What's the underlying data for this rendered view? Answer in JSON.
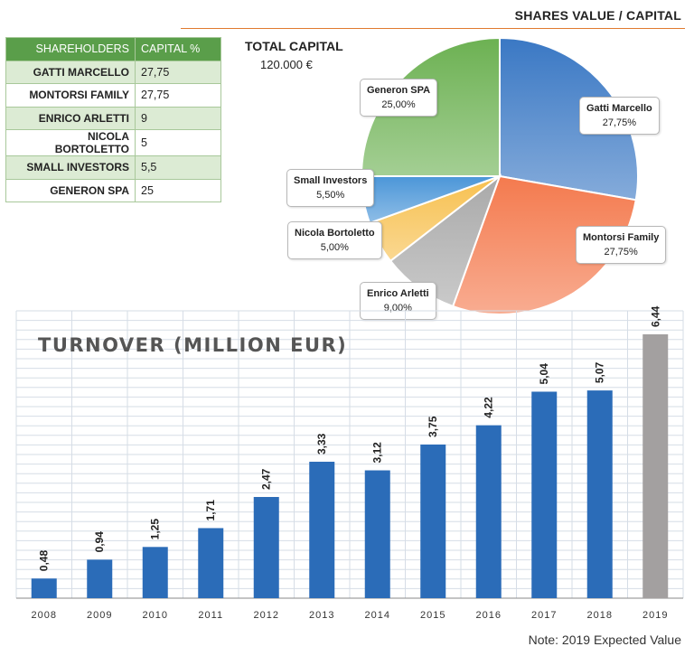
{
  "header": {
    "title": "SHARES VALUE / CAPITAL"
  },
  "table": {
    "headers": [
      "SHAREHOLDERS",
      "CAPITAL %"
    ],
    "rows": [
      {
        "name": "GATTI MARCELLO",
        "value": "27,75"
      },
      {
        "name": "MONTORSI FAMILY",
        "value": "27,75"
      },
      {
        "name": "ENRICO ARLETTI",
        "value": "9"
      },
      {
        "name": "NICOLA BORTOLETTO",
        "value": "5"
      },
      {
        "name": "SMALL INVESTORS",
        "value": "5,5"
      },
      {
        "name": "GENERON SPA",
        "value": "25"
      }
    ]
  },
  "total": {
    "label": "TOTAL CAPITAL",
    "value": "120.000 €"
  },
  "note": "Note: 2019 Expected Value",
  "chart_data": [
    {
      "type": "pie",
      "title": "",
      "slices": [
        {
          "name": "Gatti Marcello",
          "value": 27.75,
          "label": "27,75%",
          "color": "#3a78c4"
        },
        {
          "name": "Montorsi Family",
          "value": 27.75,
          "label": "27,75%",
          "color": "#f47a4e"
        },
        {
          "name": "Enrico Arletti",
          "value": 9,
          "label": "9,00%",
          "color": "#a9a9a9"
        },
        {
          "name": "Nicola Bortoletto",
          "value": 5,
          "label": "5,00%",
          "color": "#f7c04f"
        },
        {
          "name": "Small Investors",
          "value": 5.5,
          "label": "5,50%",
          "color": "#4b96d8"
        },
        {
          "name": "Generon SPA",
          "value": 25,
          "label": "25,00%",
          "color": "#6cb152"
        }
      ]
    },
    {
      "type": "bar",
      "title": "TURNOVER (MILLION EUR)",
      "xlabel": "",
      "ylabel": "",
      "categories": [
        "2008",
        "2009",
        "2010",
        "2011",
        "2012",
        "2013",
        "2014",
        "2015",
        "2016",
        "2017",
        "2018",
        "2019"
      ],
      "values": [
        0.48,
        0.94,
        1.25,
        1.71,
        2.47,
        3.33,
        3.12,
        3.75,
        4.22,
        5.04,
        5.07,
        6.44
      ],
      "labels": [
        "0,48",
        "0,94",
        "1,25",
        "1,71",
        "2,47",
        "3,33",
        "3,12",
        "3,75",
        "4,22",
        "5,04",
        "5,07",
        "6,44"
      ],
      "ylim": [
        0,
        6.44
      ],
      "grid": true,
      "colors": {
        "actual": "#2b6cb8",
        "expected": "#a3a0a0"
      },
      "expected_index": 11
    }
  ]
}
